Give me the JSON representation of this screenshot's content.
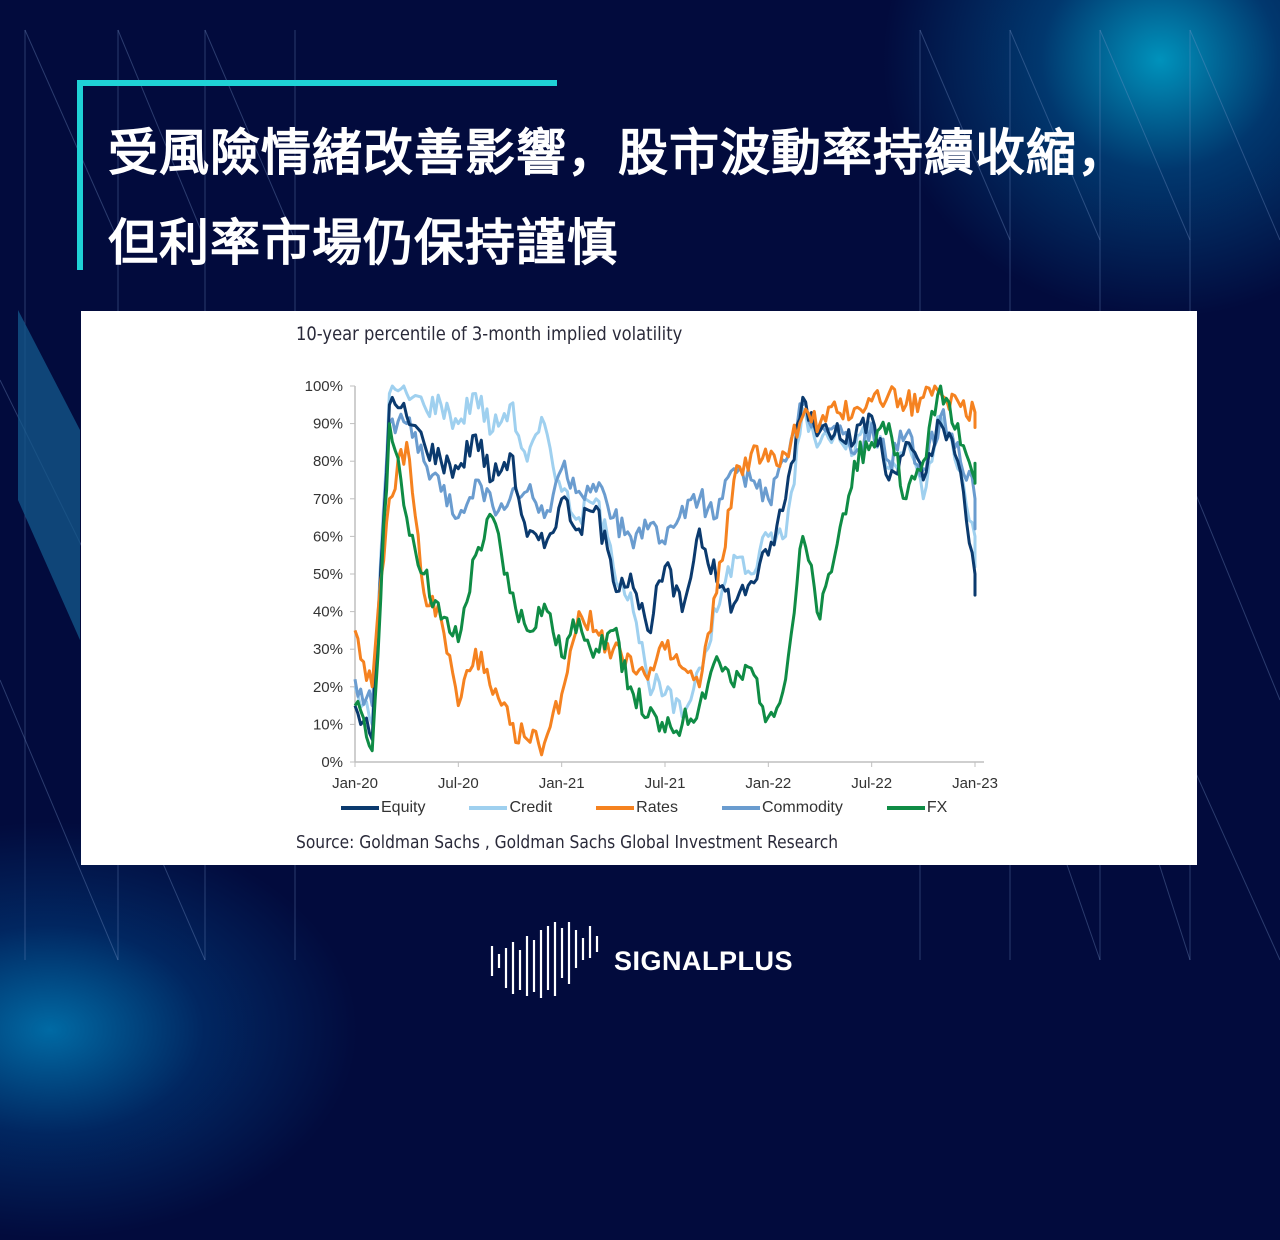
{
  "headline": {
    "line1": "受風險情緒改善影響，股市波動率持續收縮，",
    "line2": "但利率市場仍保持謹慎"
  },
  "brand": {
    "name": "SIGNALPLUS",
    "logo_icon": "waveform-bars-icon"
  },
  "colors": {
    "background": "#020b3d",
    "accent": "#1fd2d6",
    "equity": "#0b3a6e",
    "credit": "#9fd0ef",
    "rates": "#f58220",
    "commodity": "#6a9ccf",
    "fx": "#0f8c45"
  },
  "chart_data": {
    "type": "line",
    "title": "10-year percentile of 3-month implied volatility",
    "source": "Source: Goldman Sachs , Goldman Sachs Global Investment Research",
    "xlabel": "",
    "ylabel": "",
    "ylim": [
      0,
      100
    ],
    "yticks": [
      "0%",
      "10%",
      "20%",
      "30%",
      "40%",
      "50%",
      "60%",
      "70%",
      "80%",
      "90%",
      "100%"
    ],
    "xticks": [
      "Jan-20",
      "Jul-20",
      "Jan-21",
      "Jul-21",
      "Jan-22",
      "Jul-22",
      "Jan-23"
    ],
    "grid": false,
    "legend_position": "bottom",
    "x": [
      "2020-01",
      "2020-02",
      "2020-03",
      "2020-04",
      "2020-05",
      "2020-06",
      "2020-07",
      "2020-08",
      "2020-09",
      "2020-10",
      "2020-11",
      "2020-12",
      "2021-01",
      "2021-02",
      "2021-03",
      "2021-04",
      "2021-05",
      "2021-06",
      "2021-07",
      "2021-08",
      "2021-09",
      "2021-10",
      "2021-11",
      "2021-12",
      "2022-01",
      "2022-02",
      "2022-03",
      "2022-04",
      "2022-05",
      "2022-06",
      "2022-07",
      "2022-08",
      "2022-09",
      "2022-10",
      "2022-11",
      "2022-12",
      "2023-01",
      "2023-02"
    ],
    "series": [
      {
        "name": "Equity",
        "values": [
          15,
          6,
          95,
          92,
          85,
          80,
          78,
          87,
          75,
          82,
          60,
          57,
          70,
          62,
          68,
          48,
          50,
          35,
          52,
          40,
          62,
          48,
          42,
          48,
          55,
          70,
          97,
          88,
          90,
          85,
          92,
          75,
          85,
          75,
          90,
          80,
          50,
          45
        ]
      },
      {
        "name": "Credit",
        "values": [
          20,
          10,
          98,
          98,
          95,
          95,
          90,
          98,
          88,
          95,
          80,
          90,
          72,
          65,
          70,
          52,
          45,
          22,
          18,
          12,
          25,
          40,
          55,
          50,
          60,
          60,
          94,
          85,
          90,
          82,
          90,
          78,
          85,
          70,
          92,
          78,
          60,
          52
        ]
      },
      {
        "name": "Rates",
        "values": [
          35,
          20,
          70,
          85,
          45,
          38,
          15,
          30,
          18,
          10,
          6,
          5,
          18,
          40,
          35,
          30,
          28,
          22,
          30,
          25,
          20,
          45,
          75,
          82,
          80,
          82,
          92,
          90,
          93,
          94,
          96,
          98,
          95,
          97,
          98,
          96,
          93,
          91
        ]
      },
      {
        "name": "Commodity",
        "values": [
          22,
          15,
          90,
          90,
          80,
          72,
          65,
          75,
          68,
          70,
          72,
          65,
          78,
          72,
          72,
          65,
          60,
          62,
          58,
          68,
          70,
          65,
          78,
          75,
          70,
          80,
          95,
          90,
          88,
          82,
          90,
          80,
          87,
          78,
          92,
          85,
          70,
          62
        ]
      },
      {
        "name": "FX",
        "values": [
          15,
          3,
          90,
          65,
          50,
          38,
          32,
          55,
          65,
          45,
          35,
          42,
          28,
          38,
          30,
          35,
          20,
          12,
          8,
          10,
          15,
          28,
          20,
          25,
          12,
          22,
          60,
          38,
          58,
          80,
          85,
          90,
          70,
          80,
          100,
          90,
          75,
          78
        ]
      }
    ]
  }
}
